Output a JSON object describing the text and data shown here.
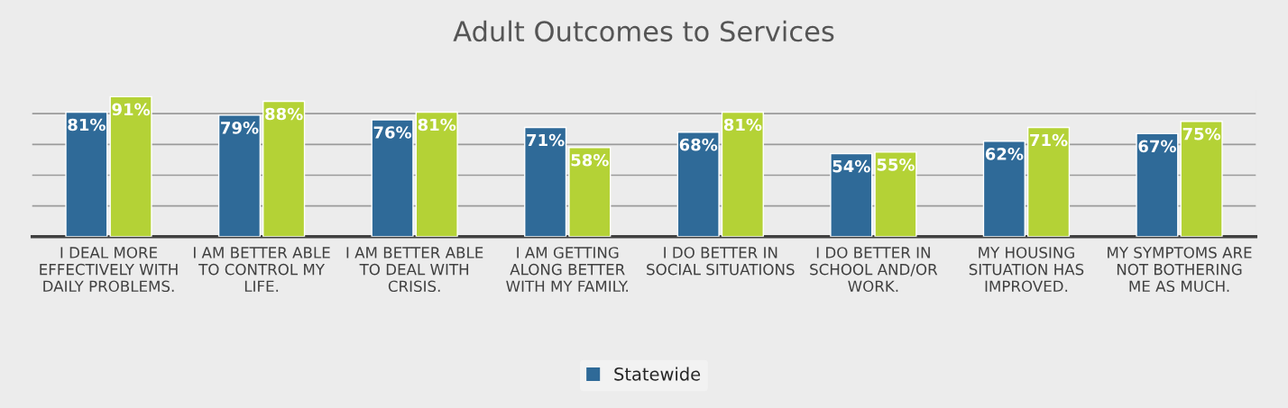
{
  "chart_data": {
    "type": "bar",
    "title": "Adult Outcomes to Services",
    "categories": [
      "I DEAL MORE EFFECTIVELY WITH DAILY PROBLEMS.",
      "I AM BETTER ABLE TO CONTROL MY LIFE.",
      "I AM BETTER ABLE TO DEAL WITH CRISIS.",
      "I AM GETTING ALONG BETTER WITH MY FAMILY.",
      "I DO BETTER IN SOCIAL SITUATIONS",
      "I DO BETTER IN SCHOOL AND/OR WORK.",
      "MY HOUSING SITUATION HAS IMPROVED.",
      "MY SYMPTOMS ARE NOT BOTHERING ME AS MUCH."
    ],
    "series": [
      {
        "name": "Statewide",
        "color": "#2f6a98",
        "values": [
          81,
          79,
          76,
          71,
          68,
          54,
          62,
          67
        ],
        "value_labels": [
          "81%",
          "79%",
          "76%",
          "71%",
          "68%",
          "54%",
          "62%",
          "67%"
        ]
      },
      {
        "color": "#b4d236",
        "values": [
          91,
          88,
          81,
          58,
          81,
          55,
          71,
          75
        ],
        "value_labels": [
          "91%",
          "88%",
          "81%",
          "58%",
          "81%",
          "55%",
          "71%",
          "75%"
        ]
      }
    ],
    "yticks": [
      {
        "value": 20,
        "label": null
      },
      {
        "value": 40,
        "label": null
      },
      {
        "value": 60,
        "label": null
      },
      {
        "value": 80,
        "label": null
      }
    ],
    "grid": "y",
    "legend": "bottom",
    "tick_labels": "x"
  }
}
